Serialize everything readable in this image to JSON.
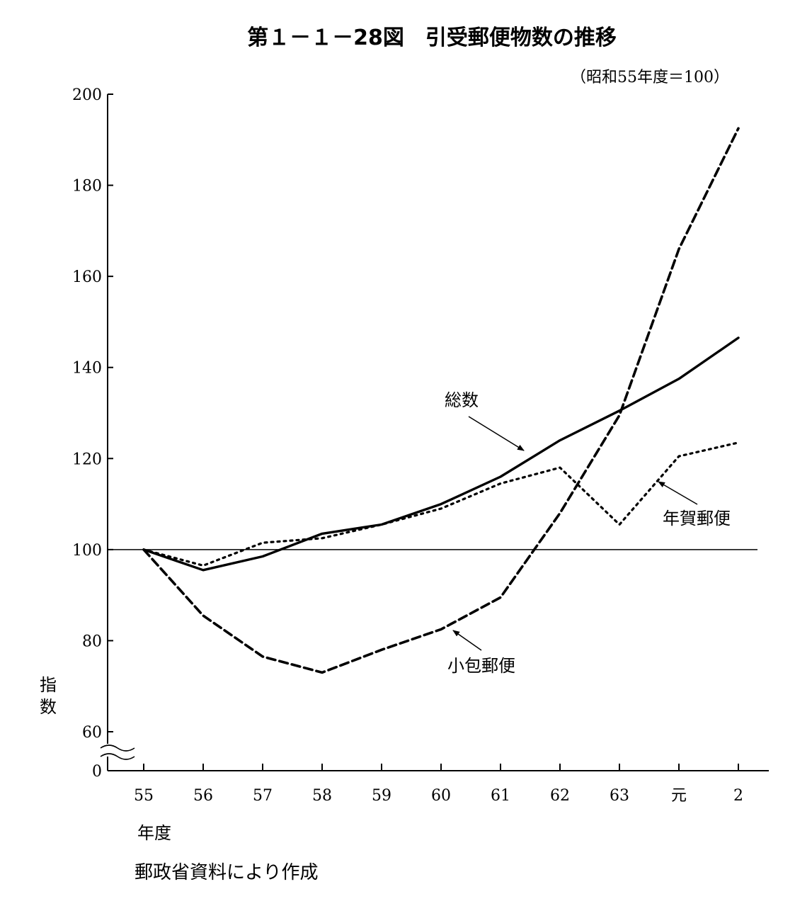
{
  "chart_data": {
    "type": "line",
    "title": "第１－１－28図　引受郵便物数の推移",
    "subtitle": "（昭和55年度＝100）",
    "xlabel": "年度",
    "ylabel": "指数",
    "categories": [
      "55",
      "56",
      "57",
      "58",
      "59",
      "60",
      "61",
      "62",
      "63",
      "元",
      "2"
    ],
    "y_ticks": [
      "0",
      "60",
      "80",
      "100",
      "120",
      "140",
      "160",
      "180",
      "200"
    ],
    "ylim": [
      60,
      200
    ],
    "axis_break": true,
    "reference_line": 100,
    "grid": false,
    "series": [
      {
        "name": "総数",
        "style": "solid",
        "values": [
          100,
          95.5,
          98.5,
          103.5,
          105.5,
          110,
          116,
          124,
          130.5,
          137.5,
          146.5
        ]
      },
      {
        "name": "年賀郵便",
        "style": "dotted",
        "values": [
          100,
          96.5,
          101.5,
          102.5,
          105.5,
          109,
          114.5,
          118,
          105.5,
          120.5,
          123.5
        ]
      },
      {
        "name": "小包郵便",
        "style": "dashed",
        "values": [
          100,
          85.5,
          76.5,
          73,
          78,
          82.5,
          89.5,
          108,
          129.5,
          166,
          192.5
        ]
      }
    ],
    "source": "郵政省資料により作成"
  }
}
